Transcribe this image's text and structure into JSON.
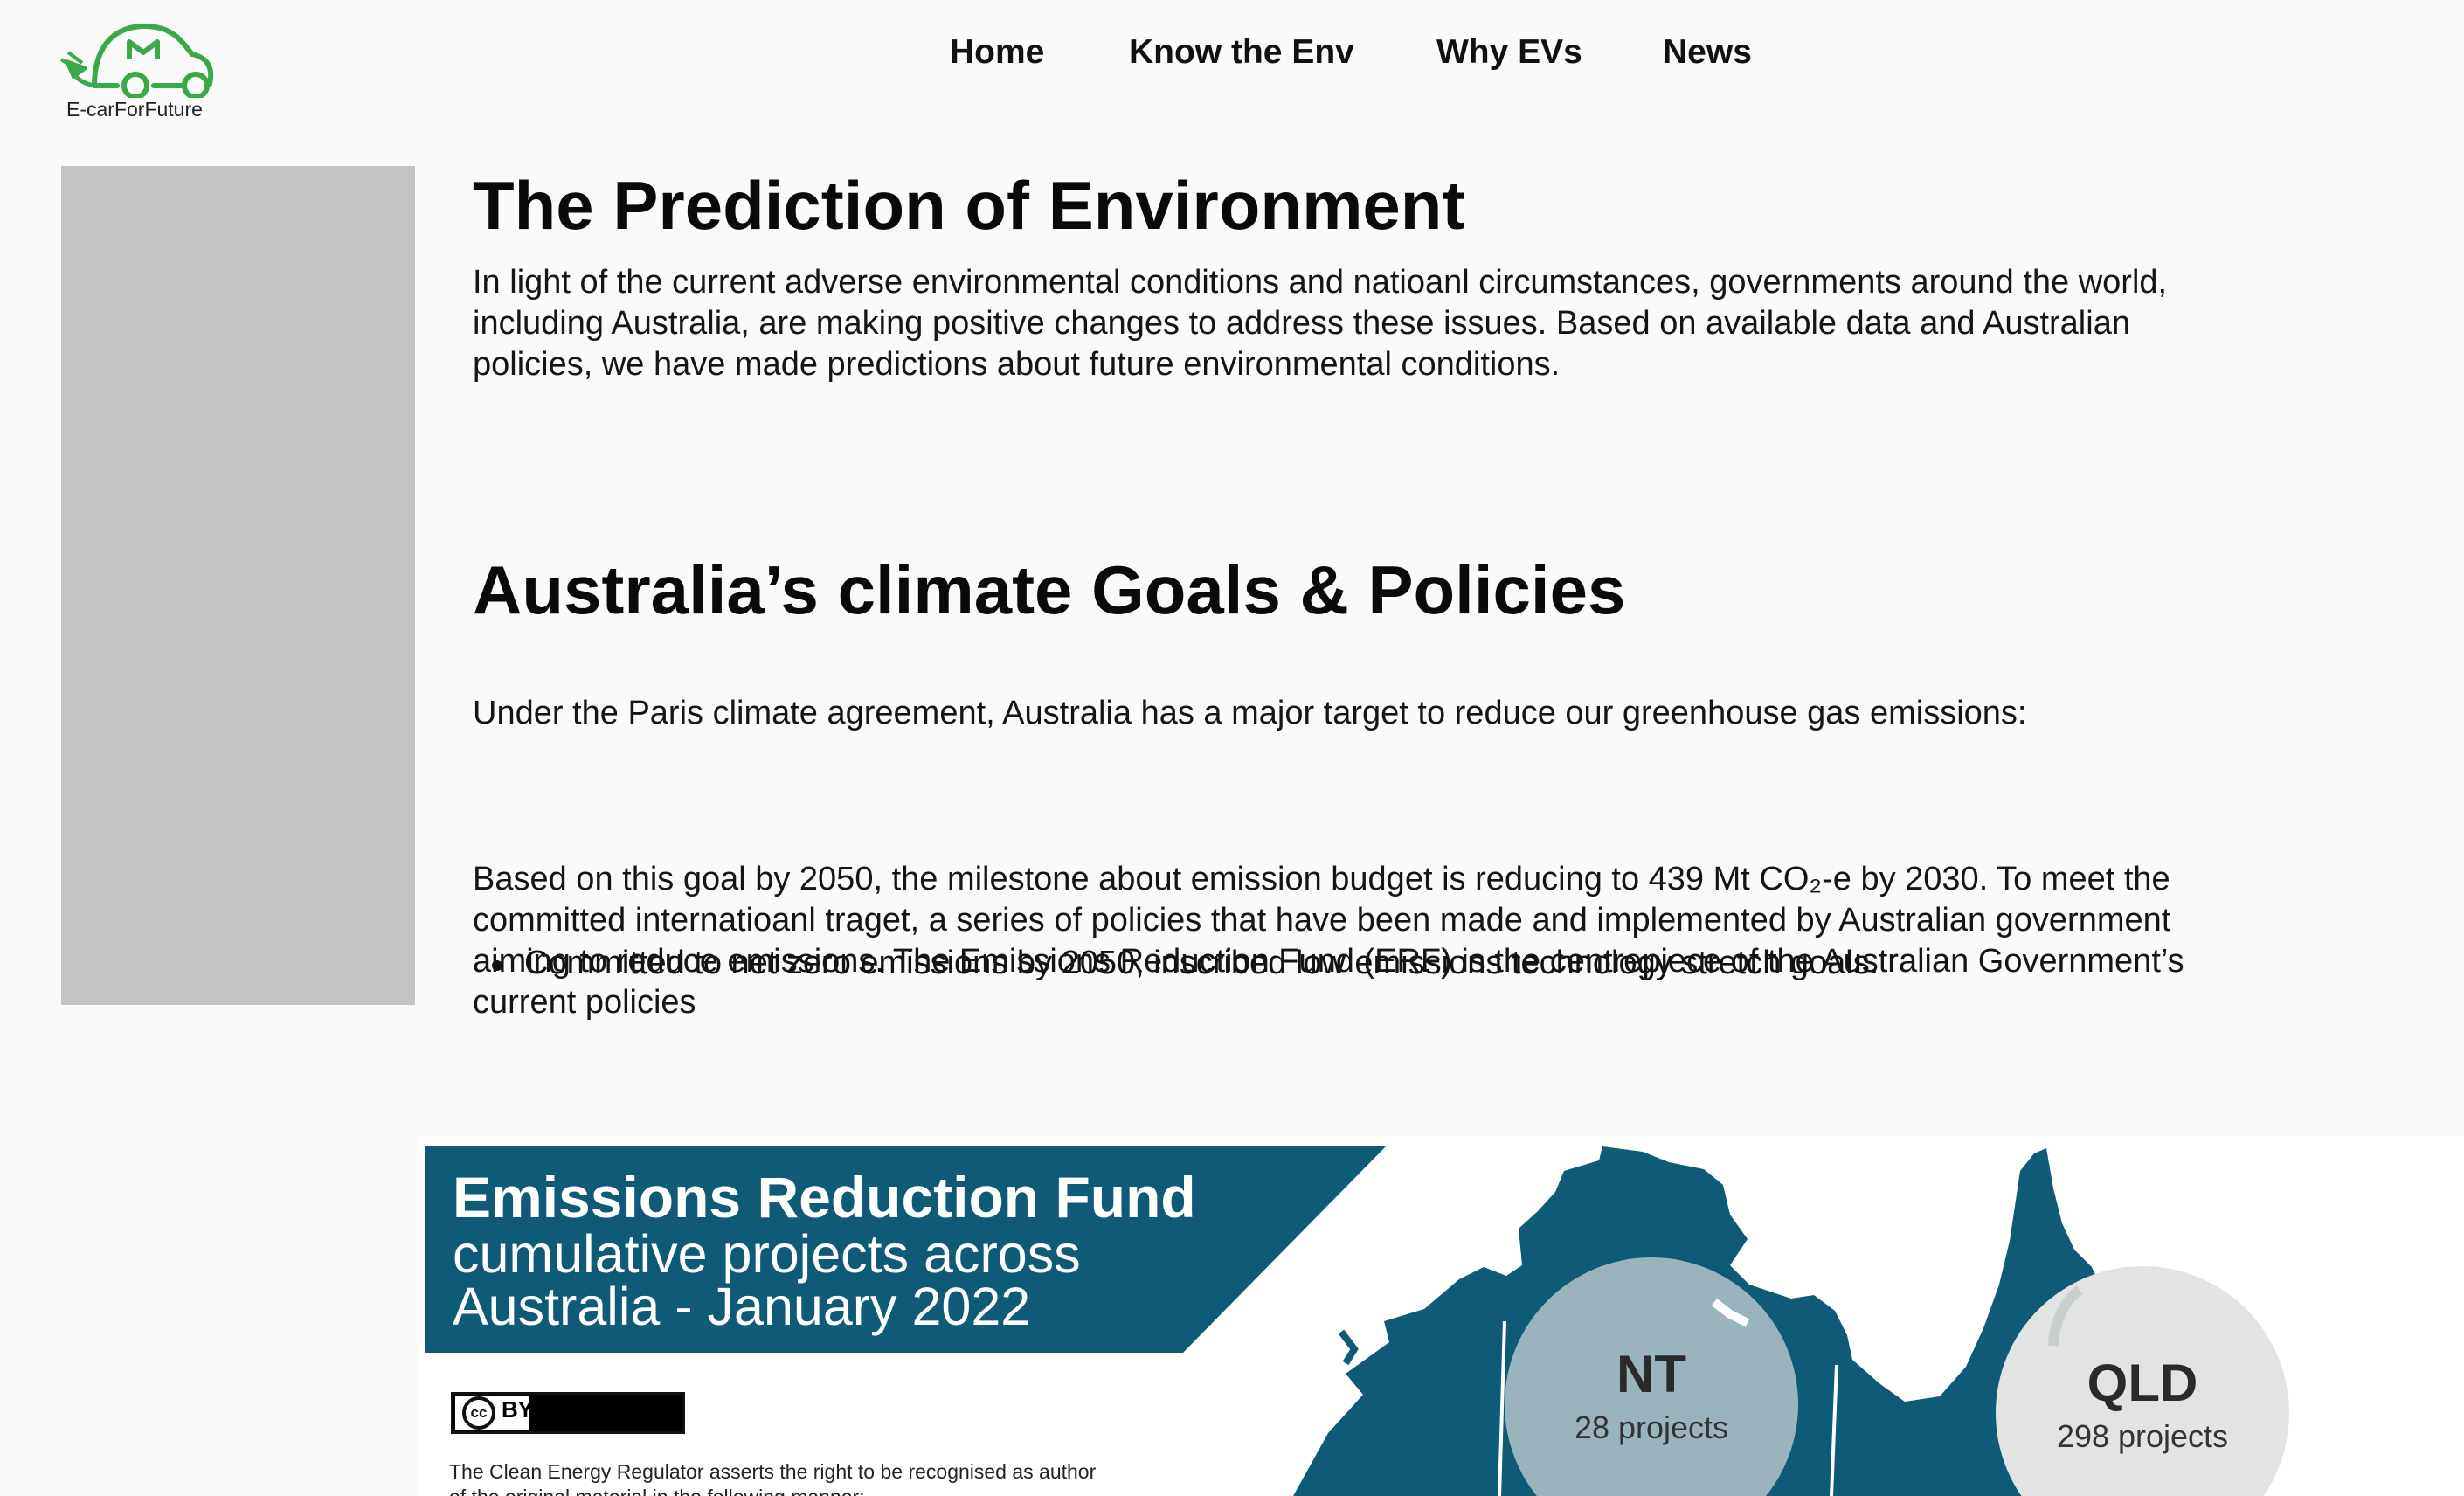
{
  "header": {
    "logo_text": "E-carForFuture",
    "nav": [
      "Home",
      "Know the Env",
      "Why EVs",
      "News"
    ]
  },
  "main": {
    "title": "The Prediction of Environment",
    "intro": "In light of the current adverse environmental conditions and natioanl circumstances, governments around the world, including Australia, are making positive changes to address these issues. Based on available data and Australian policies, we have made predictions about future environmental conditions.",
    "section_title": "Australia’s climate  Goals & Policies",
    "section_intro": "Under the Paris climate agreement, Australia has a major target to reduce our greenhouse gas emissions:",
    "bullets": [
      "Committed to net zero emissions by 2050, inscribed low emissions technology stretch goals."
    ],
    "body": "Based on this goal by 2050, the milestone about emission budget is reducing to 439 Mt CO₂-e by 2030. To meet the committed internatioanl traget, a series of policies that have been made and implemented by Australian government aiming to reduce emissions. The Emissions Reduction Fund (ERF) is the centrepiece of the Australian Government’s current policies"
  },
  "infographic": {
    "title": "Emissions Reduction Fund",
    "subtitle_line1": "cumulative projects across",
    "subtitle_line2": "Australia  - January 2022",
    "license": "BY",
    "license_icon": "cc",
    "note": "The Clean Energy Regulator asserts the right to be recognised as author of the original material in the following manner:",
    "regions": [
      {
        "state": "NT",
        "projects": "28 projects"
      },
      {
        "state": "QLD",
        "projects": "298 projects"
      }
    ],
    "colors": {
      "banner": "#0e5a77",
      "map": "#0e5a77",
      "nt_circle": "#9ab4bd",
      "qld_circle": "#e2e4e3"
    }
  },
  "colors": {
    "logo_green": "#3aaa48",
    "sidebar": "#c4c4c4",
    "background": "#fafafa"
  }
}
